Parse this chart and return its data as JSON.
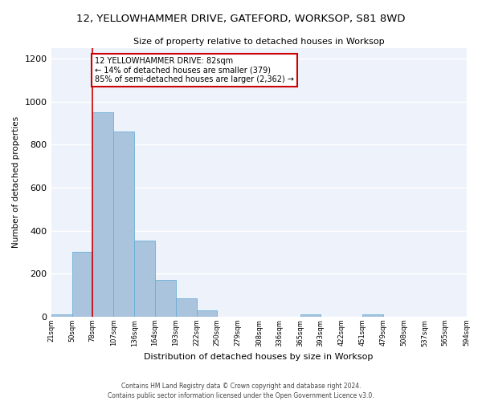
{
  "title_line1": "12, YELLOWHAMMER DRIVE, GATEFORD, WORKSOP, S81 8WD",
  "title_line2": "Size of property relative to detached houses in Worksop",
  "xlabel": "Distribution of detached houses by size in Worksop",
  "ylabel": "Number of detached properties",
  "bar_color": "#aac4de",
  "bar_edge_color": "#6aaed6",
  "bins": [
    21,
    50,
    78,
    107,
    136,
    164,
    193,
    222,
    250,
    279,
    308,
    336,
    365,
    393,
    422,
    451,
    479,
    508,
    537,
    565,
    594
  ],
  "counts": [
    12,
    300,
    950,
    860,
    355,
    170,
    85,
    30,
    0,
    0,
    0,
    0,
    12,
    0,
    0,
    12,
    0,
    0,
    0,
    0
  ],
  "annotation_title": "12 YELLOWHAMMER DRIVE: 82sqm",
  "annotation_line2": "← 14% of detached houses are smaller (379)",
  "annotation_line3": "85% of semi-detached houses are larger (2,362) →",
  "annotation_box_color": "#ffffff",
  "annotation_border_color": "#cc0000",
  "vline_color": "#cc0000",
  "vline_x": 78,
  "ylim": [
    0,
    1250
  ],
  "yticks": [
    0,
    200,
    400,
    600,
    800,
    1000,
    1200
  ],
  "background_color": "#eef2fb",
  "grid_color": "#ffffff",
  "footer_line1": "Contains HM Land Registry data © Crown copyright and database right 2024.",
  "footer_line2": "Contains public sector information licensed under the Open Government Licence v3.0."
}
